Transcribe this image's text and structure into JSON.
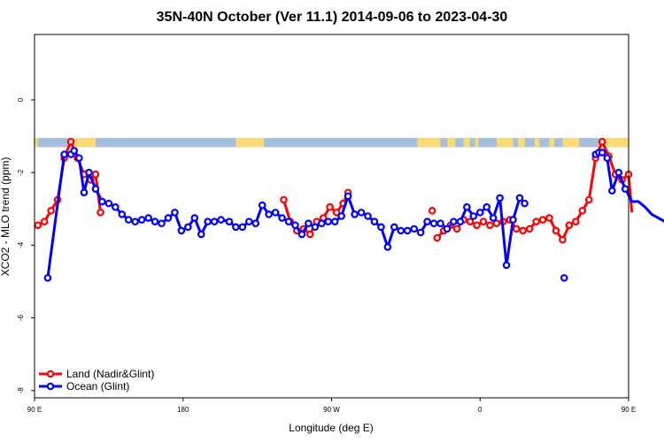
{
  "chart_data": {
    "type": "line",
    "title": "35N-40N October (Ver 11.1)   2014-09-06 to 2023-04-30",
    "xlabel": "Longitude (deg E)",
    "ylabel": "XCO2 - MLO trend (ppm)",
    "xlim": [
      90,
      450
    ],
    "ylim": [
      -8.2,
      1.8
    ],
    "x_ticks": [
      {
        "value": 90,
        "label": "90 E"
      },
      {
        "value": 180,
        "label": "180"
      },
      {
        "value": 270,
        "label": "90 W"
      },
      {
        "value": 360,
        "label": "0"
      },
      {
        "value": 450,
        "label": "90 E"
      }
    ],
    "x_ticks_extra": [
      {
        "value": 540,
        "label": "180"
      }
    ],
    "y_ticks": [
      0,
      -2,
      -4,
      -6,
      -8
    ],
    "legend_position": "bottom-left",
    "land_ocean_strip": {
      "y_range": [
        -1.05,
        -1.3
      ],
      "land_color": "#FADA77",
      "ocean_color": "#A5BEDC",
      "land_segments": [
        [
          90,
          92
        ],
        [
          114,
          127
        ],
        [
          212,
          229
        ],
        [
          322,
          336
        ],
        [
          340,
          345
        ],
        [
          350,
          354
        ],
        [
          357,
          359
        ],
        [
          370,
          380
        ],
        [
          383,
          387
        ],
        [
          393,
          396
        ],
        [
          402,
          405
        ],
        [
          410,
          420
        ],
        [
          432,
          470
        ],
        [
          475,
          482
        ],
        [
          490,
          496
        ],
        [
          500,
          503
        ],
        [
          512,
          535
        ],
        [
          538,
          540
        ]
      ]
    },
    "series": [
      {
        "name": "Land (Nadir&Glint)",
        "color": "#FF0000",
        "segments": [
          [
            [
              92,
              -3.45
            ],
            [
              96,
              -3.35
            ],
            [
              100,
              -3.05
            ],
            [
              104,
              -2.75
            ],
            [
              108,
              -1.6
            ],
            [
              112,
              -1.15
            ],
            [
              116,
              -1.6
            ],
            [
              120,
              -2.05
            ],
            [
              124,
              -2.2
            ],
            [
              127,
              -2.05
            ],
            [
              130,
              -3.1
            ]
          ],
          [
            [
              241,
              -2.75
            ],
            [
              245,
              -3.35
            ],
            [
              249,
              -3.6
            ],
            [
              253,
              -3.55
            ],
            [
              257,
              -3.7
            ],
            [
              261,
              -3.35
            ],
            [
              265,
              -3.25
            ],
            [
              269,
              -2.95
            ],
            [
              273,
              -3.1
            ],
            [
              277,
              -2.85
            ],
            [
              280,
              -2.55
            ]
          ],
          [
            [
              331,
              -3.05
            ]
          ],
          [
            [
              334,
              -3.8
            ],
            [
              338,
              -3.6
            ],
            [
              342,
              -3.45
            ],
            [
              346,
              -3.55
            ],
            [
              350,
              -3.3
            ],
            [
              354,
              -3.35
            ],
            [
              358,
              -3.45
            ],
            [
              362,
              -3.35
            ],
            [
              366,
              -3.45
            ],
            [
              370,
              -3.4
            ],
            [
              374,
              -3.35
            ],
            [
              378,
              -3.3
            ],
            [
              382,
              -3.55
            ],
            [
              386,
              -3.6
            ],
            [
              390,
              -3.55
            ],
            [
              394,
              -3.35
            ],
            [
              398,
              -3.3
            ],
            [
              402,
              -3.25
            ],
            [
              406,
              -3.6
            ],
            [
              410,
              -3.85
            ],
            [
              414,
              -3.45
            ],
            [
              418,
              -3.35
            ],
            [
              422,
              -3.05
            ],
            [
              426,
              -2.75
            ],
            [
              430,
              -1.6
            ],
            [
              434,
              -1.15
            ],
            [
              438,
              -1.55
            ],
            [
              442,
              -2.05
            ],
            [
              446,
              -2.2
            ],
            [
              450,
              -2.05
            ],
            [
              452,
              -3.1
            ]
          ]
        ]
      },
      {
        "name": "Ocean (Glint)",
        "color": "#0000FF",
        "segments": [
          [
            [
              98,
              -4.9
            ],
            [
              108,
              -1.5
            ],
            [
              112,
              -1.5
            ],
            [
              114,
              -1.4
            ],
            [
              117,
              -1.6
            ],
            [
              120,
              -2.55
            ],
            [
              123,
              -2.0
            ],
            [
              127,
              -2.45
            ],
            [
              131,
              -2.8
            ],
            [
              135,
              -2.85
            ],
            [
              139,
              -2.95
            ],
            [
              143,
              -3.15
            ],
            [
              147,
              -3.3
            ],
            [
              151,
              -3.35
            ],
            [
              155,
              -3.3
            ],
            [
              159,
              -3.25
            ],
            [
              163,
              -3.35
            ],
            [
              167,
              -3.4
            ],
            [
              171,
              -3.25
            ],
            [
              175,
              -3.1
            ],
            [
              179,
              -3.6
            ],
            [
              183,
              -3.5
            ],
            [
              187,
              -3.25
            ],
            [
              191,
              -3.7
            ],
            [
              195,
              -3.35
            ],
            [
              199,
              -3.35
            ],
            [
              203,
              -3.3
            ],
            [
              208,
              -3.35
            ],
            [
              212,
              -3.5
            ],
            [
              216,
              -3.5
            ],
            [
              220,
              -3.35
            ],
            [
              224,
              -3.4
            ],
            [
              228,
              -2.9
            ],
            [
              232,
              -3.15
            ],
            [
              236,
              -3.1
            ],
            [
              240,
              -3.25
            ],
            [
              244,
              -3.35
            ],
            [
              248,
              -3.45
            ],
            [
              252,
              -3.7
            ],
            [
              256,
              -3.4
            ],
            [
              260,
              -3.5
            ],
            [
              264,
              -3.4
            ],
            [
              268,
              -3.35
            ],
            [
              272,
              -3.35
            ],
            [
              276,
              -3.2
            ],
            [
              280,
              -2.65
            ],
            [
              284,
              -3.15
            ],
            [
              288,
              -3.1
            ],
            [
              292,
              -3.2
            ],
            [
              296,
              -3.35
            ],
            [
              300,
              -3.5
            ],
            [
              304,
              -4.05
            ],
            [
              308,
              -3.5
            ],
            [
              312,
              -3.6
            ],
            [
              316,
              -3.6
            ],
            [
              320,
              -3.55
            ],
            [
              324,
              -3.65
            ],
            [
              328,
              -3.35
            ],
            [
              332,
              -3.4
            ],
            [
              336,
              -3.4
            ],
            [
              340,
              -3.55
            ],
            [
              344,
              -3.35
            ],
            [
              348,
              -3.35
            ],
            [
              352,
              -2.95
            ],
            [
              356,
              -3.2
            ],
            [
              360,
              -3.1
            ],
            [
              364,
              -2.95
            ],
            [
              368,
              -3.25
            ],
            [
              372,
              -2.7
            ],
            [
              376,
              -4.55
            ],
            [
              380,
              -3.3
            ],
            [
              384,
              -2.7
            ],
            [
              387,
              -2.85
            ]
          ],
          [
            [
              411,
              -4.9
            ]
          ],
          [
            [
              430,
              -1.5
            ],
            [
              432,
              -1.45
            ],
            [
              434,
              -1.45
            ],
            [
              437,
              -1.6
            ],
            [
              440,
              -2.5
            ],
            [
              444,
              -2.0
            ],
            [
              448,
              -2.45
            ],
            [
              452,
              -2.8
            ],
            [
              456,
              -2.8
            ],
            [
              460,
              -2.95
            ],
            [
              464,
              -3.15
            ],
            [
              468,
              -3.25
            ],
            [
              472,
              -3.35
            ],
            [
              476,
              -3.3
            ]
          ]
        ]
      }
    ]
  }
}
